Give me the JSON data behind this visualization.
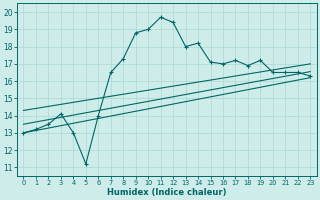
{
  "xlabel": "Humidex (Indice chaleur)",
  "bg_color": "#ceecea",
  "line_color": "#006666",
  "grid_color": "#aad8d4",
  "x_ticks": [
    0,
    1,
    2,
    3,
    4,
    5,
    6,
    7,
    8,
    9,
    10,
    11,
    12,
    13,
    14,
    15,
    16,
    17,
    18,
    19,
    20,
    21,
    22,
    23
  ],
  "y_ticks": [
    11,
    12,
    13,
    14,
    15,
    16,
    17,
    18,
    19,
    20
  ],
  "ylim": [
    10.5,
    20.5
  ],
  "xlim": [
    -0.5,
    23.5
  ],
  "main_line_x": [
    0,
    1,
    2,
    3,
    4,
    5,
    6,
    7,
    8,
    9,
    10,
    11,
    12,
    13,
    14,
    15,
    16,
    17,
    18,
    19,
    20,
    21,
    22,
    23
  ],
  "main_line_y": [
    13.0,
    13.2,
    13.5,
    14.1,
    13.0,
    11.2,
    14.0,
    16.5,
    17.3,
    18.8,
    19.0,
    19.7,
    19.4,
    18.0,
    18.2,
    17.1,
    17.0,
    17.2,
    16.9,
    17.2,
    16.5,
    16.5,
    16.5,
    16.3
  ],
  "reg_lines": [
    {
      "x0": 0,
      "y0": 13.0,
      "x1": 23,
      "y1": 16.2
    },
    {
      "x0": 0,
      "y0": 13.5,
      "x1": 23,
      "y1": 16.55
    },
    {
      "x0": 0,
      "y0": 14.3,
      "x1": 23,
      "y1": 17.0
    }
  ]
}
